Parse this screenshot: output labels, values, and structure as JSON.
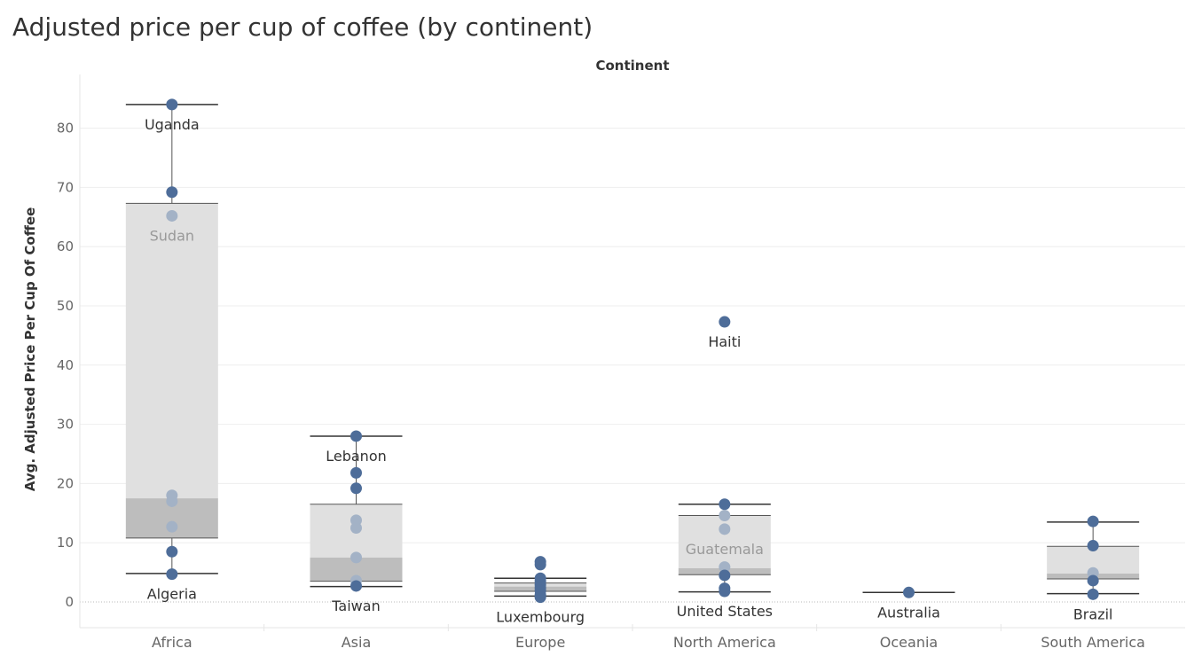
{
  "title": "Adjusted price per cup of coffee (by continent)",
  "chart_data": {
    "type": "boxplot",
    "title": "Adjusted price per cup of coffee (by continent)",
    "column_header": "Continent",
    "ylabel": "Avg. Adjusted Price Per Cup Of Coffee",
    "ylim": [
      -4,
      88
    ],
    "yticks": [
      0,
      10,
      20,
      30,
      40,
      50,
      60,
      70,
      80
    ],
    "grid": true,
    "colors": {
      "point": "#4e6d99",
      "point_faded": "#a3b2c6",
      "box_upper": "#e0e0e0",
      "box_lower": "#bdbdbd",
      "whisker": "#333333",
      "grid": "#eeeeee"
    },
    "categories": [
      "Africa",
      "Asia",
      "Europe",
      "North America",
      "Oceania",
      "South America"
    ],
    "boxes": [
      {
        "category": "Africa",
        "whisker_low": 4.8,
        "q1": 10.8,
        "median": 17.5,
        "q3": 67.3,
        "whisker_high": 84.0
      },
      {
        "category": "Asia",
        "whisker_low": 2.6,
        "q1": 3.5,
        "median": 7.5,
        "q3": 16.5,
        "whisker_high": 28.0
      },
      {
        "category": "Europe",
        "whisker_low": 1.0,
        "q1": 1.8,
        "median": 2.6,
        "q3": 3.2,
        "whisker_high": 4.0
      },
      {
        "category": "North America",
        "whisker_low": 1.7,
        "q1": 4.6,
        "median": 5.7,
        "q3": 14.6,
        "whisker_high": 16.5
      },
      {
        "category": "Oceania",
        "whisker_low": 1.6,
        "q1": 1.6,
        "median": 1.6,
        "q3": 1.6,
        "whisker_high": 1.6
      },
      {
        "category": "South America",
        "whisker_low": 1.4,
        "q1": 3.9,
        "median": 4.8,
        "q3": 9.4,
        "whisker_high": 13.5
      }
    ],
    "points": [
      {
        "category": "Africa",
        "value": 84.0,
        "faded": false
      },
      {
        "category": "Africa",
        "value": 69.2,
        "faded": false
      },
      {
        "category": "Africa",
        "value": 65.2,
        "faded": true
      },
      {
        "category": "Africa",
        "value": 18.0,
        "faded": true
      },
      {
        "category": "Africa",
        "value": 17.0,
        "faded": true
      },
      {
        "category": "Africa",
        "value": 12.7,
        "faded": true
      },
      {
        "category": "Africa",
        "value": 8.5,
        "faded": false
      },
      {
        "category": "Africa",
        "value": 4.7,
        "faded": false
      },
      {
        "category": "Asia",
        "value": 28.0,
        "faded": false
      },
      {
        "category": "Asia",
        "value": 21.8,
        "faded": false
      },
      {
        "category": "Asia",
        "value": 19.2,
        "faded": false
      },
      {
        "category": "Asia",
        "value": 13.8,
        "faded": true
      },
      {
        "category": "Asia",
        "value": 12.5,
        "faded": true
      },
      {
        "category": "Asia",
        "value": 7.5,
        "faded": true
      },
      {
        "category": "Asia",
        "value": 3.6,
        "faded": true
      },
      {
        "category": "Asia",
        "value": 2.7,
        "faded": false
      },
      {
        "category": "Europe",
        "value": 6.8,
        "faded": false
      },
      {
        "category": "Europe",
        "value": 6.3,
        "faded": false
      },
      {
        "category": "Europe",
        "value": 4.0,
        "faded": false
      },
      {
        "category": "Europe",
        "value": 3.5,
        "faded": false
      },
      {
        "category": "Europe",
        "value": 2.9,
        "faded": false
      },
      {
        "category": "Europe",
        "value": 2.4,
        "faded": false
      },
      {
        "category": "Europe",
        "value": 1.9,
        "faded": false
      },
      {
        "category": "Europe",
        "value": 1.2,
        "faded": false
      },
      {
        "category": "Europe",
        "value": 0.8,
        "faded": false
      },
      {
        "category": "North America",
        "value": 47.3,
        "faded": false
      },
      {
        "category": "North America",
        "value": 16.5,
        "faded": false
      },
      {
        "category": "North America",
        "value": 14.6,
        "faded": true
      },
      {
        "category": "North America",
        "value": 12.3,
        "faded": true
      },
      {
        "category": "North America",
        "value": 5.9,
        "faded": true
      },
      {
        "category": "North America",
        "value": 4.5,
        "faded": false
      },
      {
        "category": "North America",
        "value": 2.3,
        "faded": false
      },
      {
        "category": "North America",
        "value": 1.8,
        "faded": false
      },
      {
        "category": "Oceania",
        "value": 1.6,
        "faded": false
      },
      {
        "category": "South America",
        "value": 13.6,
        "faded": false
      },
      {
        "category": "South America",
        "value": 9.5,
        "faded": false
      },
      {
        "category": "South America",
        "value": 4.9,
        "faded": true
      },
      {
        "category": "South America",
        "value": 3.6,
        "faded": false
      },
      {
        "category": "South America",
        "value": 1.3,
        "faded": false
      }
    ],
    "annotations": [
      {
        "text": "Uganda",
        "category": "Africa",
        "value": 84.0,
        "position": "below",
        "faded": false
      },
      {
        "text": "Sudan",
        "category": "Africa",
        "value": 65.2,
        "position": "below",
        "faded": true
      },
      {
        "text": "Algeria",
        "category": "Africa",
        "value": 4.7,
        "position": "below",
        "faded": false
      },
      {
        "text": "Lebanon",
        "category": "Asia",
        "value": 28.0,
        "position": "below",
        "faded": false
      },
      {
        "text": "Taiwan",
        "category": "Asia",
        "value": 2.7,
        "position": "below",
        "faded": false
      },
      {
        "text": "Luxembourg",
        "category": "Europe",
        "value": 0.8,
        "position": "below",
        "faded": false
      },
      {
        "text": "Haiti",
        "category": "North America",
        "value": 47.3,
        "position": "below",
        "faded": false
      },
      {
        "text": "Guatemala",
        "category": "North America",
        "value": 12.3,
        "position": "below",
        "faded": true
      },
      {
        "text": "United States",
        "category": "North America",
        "value": 1.8,
        "position": "below",
        "faded": false
      },
      {
        "text": "Australia",
        "category": "Oceania",
        "value": 1.6,
        "position": "below",
        "faded": false
      },
      {
        "text": "Brazil",
        "category": "South America",
        "value": 1.3,
        "position": "below",
        "faded": false
      }
    ]
  }
}
